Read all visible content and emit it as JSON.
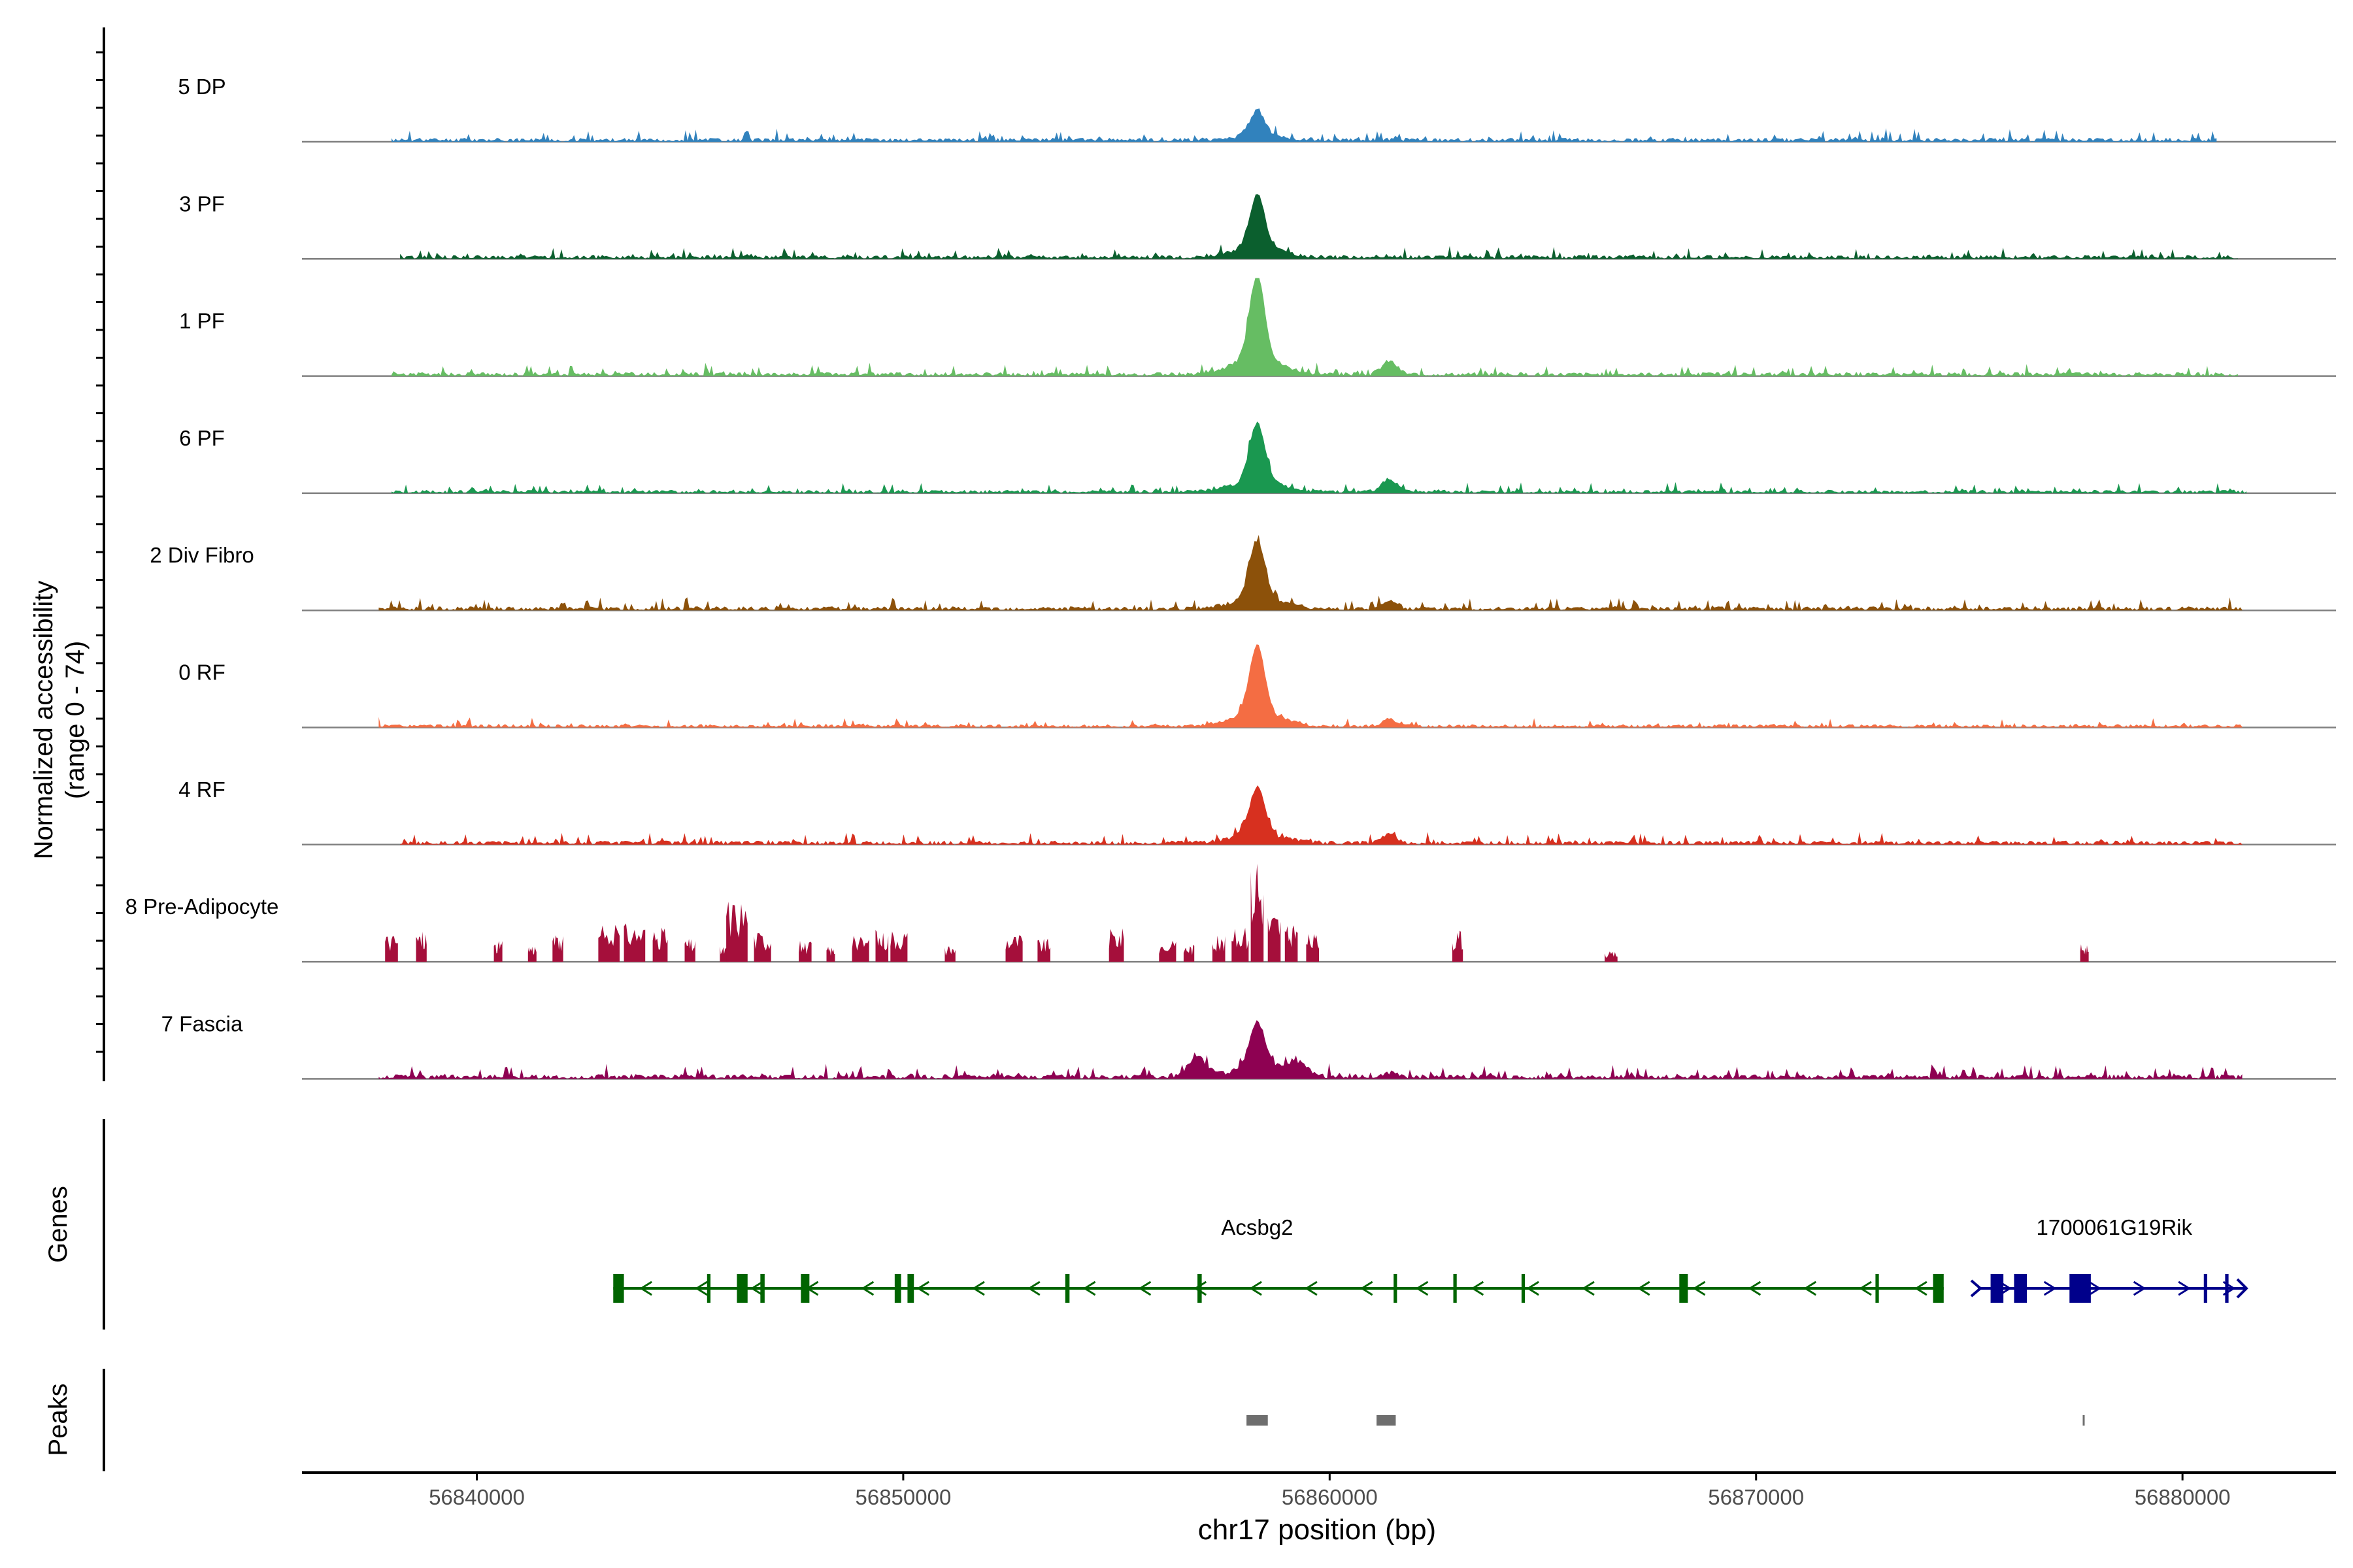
{
  "chart_data": {
    "type": "area",
    "title": "",
    "ylabel_line1": "Normalized accessibility",
    "ylabel_line2": "(range 0 - 74)",
    "y_range": [
      0,
      74
    ],
    "xlabel": "chr17 position (bp)",
    "xlim": [
      56835900,
      56883600
    ],
    "x_ticks": [
      56840000,
      56850000,
      56860000,
      56870000,
      56880000
    ],
    "x_tick_labels": [
      "56840000",
      "56850000",
      "56860000",
      "56870000",
      "56880000"
    ],
    "genes_label": "Genes",
    "peaks_label": "Peaks",
    "tracks": [
      {
        "name": "5 DP",
        "color": "#3182bd",
        "data_start": 56838000,
        "data_end": 56880800,
        "base": 3,
        "spike": 0.12,
        "main": 18,
        "side": 1,
        "seed": 11
      },
      {
        "name": "3 PF",
        "color": "#0b5f2e",
        "data_start": 56838200,
        "data_end": 56881300,
        "base": 3,
        "spike": 0.12,
        "main": 40,
        "side": 1,
        "seed": 22
      },
      {
        "name": "1 PF",
        "color": "#66bd63",
        "data_start": 56838000,
        "data_end": 56881300,
        "base": 3,
        "spike": 0.1,
        "main": 64,
        "side": 10,
        "seed": 33
      },
      {
        "name": "6 PF",
        "color": "#1a9850",
        "data_start": 56838000,
        "data_end": 56881500,
        "base": 2.5,
        "spike": 0.14,
        "main": 44,
        "side": 10,
        "seed": 44
      },
      {
        "name": "2 Div Fibro",
        "color": "#8c510a",
        "data_start": 56837700,
        "data_end": 56881400,
        "base": 3,
        "spike": 0.12,
        "main": 44,
        "side": 6,
        "seed": 55
      },
      {
        "name": "0 RF",
        "color": "#f46d43",
        "data_start": 56837700,
        "data_end": 56881400,
        "base": 2.5,
        "spike": 0.1,
        "main": 52,
        "side": 5,
        "seed": 66
      },
      {
        "name": "4 RF",
        "color": "#d7301f",
        "data_start": 56838200,
        "data_end": 56881400,
        "base": 3,
        "spike": 0.12,
        "main": 36,
        "side": 6,
        "seed": 77
      },
      {
        "name": "8 Pre-Adipocyte",
        "color": "#a50f3b",
        "data_start": 56837700,
        "data_end": 56877900,
        "base": 0,
        "spike": 0.0,
        "main": 74,
        "side": 0,
        "seed": 88,
        "blocky": true
      },
      {
        "name": "7 Fascia",
        "color": "#8e0152",
        "data_start": 56837700,
        "data_end": 56881400,
        "base": 3.5,
        "spike": 0.16,
        "main": 36,
        "side": 3,
        "seed": 99,
        "broad": true
      }
    ],
    "main_peak_position": 56858300,
    "genes": [
      {
        "name": "Acsbg2",
        "color": "#006400",
        "strand": "-",
        "start": 56843200,
        "end": 56874400,
        "label_position": 56858300,
        "exons": [
          [
            56843200,
            56843450
          ],
          [
            56845400,
            56845480
          ],
          [
            56846100,
            56846350
          ],
          [
            56846650,
            56846750
          ],
          [
            56847600,
            56847800
          ],
          [
            56849800,
            56849950
          ],
          [
            56850100,
            56850250
          ],
          [
            56853800,
            56853900
          ],
          [
            56856900,
            56857000
          ],
          [
            56861500,
            56861580
          ],
          [
            56862900,
            56862980
          ],
          [
            56864500,
            56864580
          ],
          [
            56868200,
            56868400
          ],
          [
            56872800,
            56872880
          ],
          [
            56874150,
            56874400
          ]
        ]
      },
      {
        "name": "1700061G19Rik",
        "color": "#00008b",
        "strand": "+",
        "start": 56875200,
        "end": 56881500,
        "label_position": 56878400,
        "exons": [
          [
            56875500,
            56875800
          ],
          [
            56876050,
            56876350
          ],
          [
            56877350,
            56877850
          ],
          [
            56880500,
            56880580
          ],
          [
            56881000,
            56881080
          ]
        ]
      }
    ],
    "peaks": [
      {
        "start": 56858050,
        "end": 56858550
      },
      {
        "start": 56861100,
        "end": 56861550
      },
      {
        "start": 56877660,
        "end": 56877690
      }
    ]
  }
}
